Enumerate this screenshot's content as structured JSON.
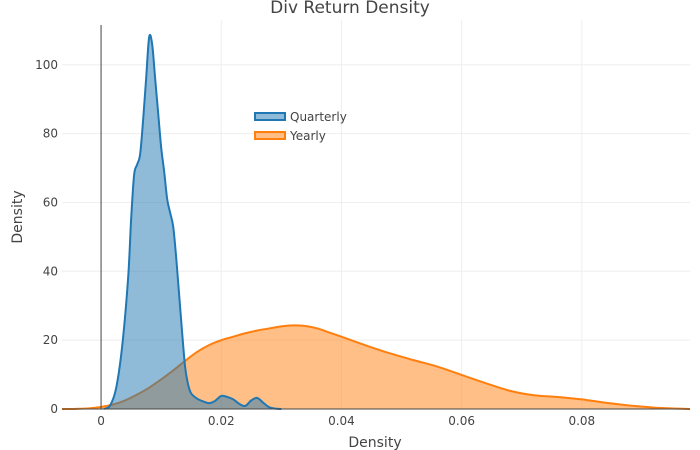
{
  "chart_data": {
    "type": "area",
    "title": "Div Return Density",
    "xlabel": "Density",
    "ylabel": "Density",
    "xlim": [
      -0.0065,
      0.098
    ],
    "ylim": [
      0,
      113
    ],
    "x_ticks": [
      0,
      0.02,
      0.04,
      0.06,
      0.08
    ],
    "x_tick_labels": [
      "0",
      "0.02",
      "0.04",
      "0.06",
      "0.08"
    ],
    "y_ticks": [
      0,
      20,
      40,
      60,
      80,
      100
    ],
    "y_tick_labels": [
      "0",
      "20",
      "40",
      "60",
      "80",
      "100"
    ],
    "grid": true,
    "legend_position": "top-center",
    "series": [
      {
        "name": "Quarterly",
        "color": "#1f77b4",
        "fill": "rgba(31,119,180,0.5)",
        "x": [
          0.0005,
          0.0015,
          0.0025,
          0.0035,
          0.0045,
          0.005,
          0.0055,
          0.006,
          0.0065,
          0.007,
          0.0075,
          0.008,
          0.0085,
          0.009,
          0.0095,
          0.01,
          0.0105,
          0.011,
          0.0115,
          0.012,
          0.0125,
          0.013,
          0.0135,
          0.014,
          0.0145,
          0.015,
          0.016,
          0.017,
          0.018,
          0.019,
          0.02,
          0.021,
          0.022,
          0.023,
          0.024,
          0.025,
          0.026,
          0.027,
          0.028,
          0.029,
          0.03
        ],
        "y": [
          0,
          1,
          6,
          18,
          38,
          55,
          68,
          71,
          74,
          84,
          96,
          108,
          106,
          96,
          86,
          76,
          69,
          61,
          57,
          53,
          44,
          33,
          22,
          12,
          7,
          4.5,
          3,
          2.2,
          1.7,
          2.4,
          3.8,
          3.5,
          2.8,
          1.5,
          0.9,
          2.5,
          3.2,
          1.8,
          0.5,
          0.1,
          0
        ]
      },
      {
        "name": "Yearly",
        "color": "#ff7f0e",
        "fill": "rgba(255,127,14,0.5)",
        "x": [
          -0.0065,
          -0.004,
          -0.002,
          0,
          0.002,
          0.004,
          0.006,
          0.008,
          0.01,
          0.012,
          0.014,
          0.016,
          0.018,
          0.02,
          0.022,
          0.024,
          0.026,
          0.028,
          0.03,
          0.032,
          0.034,
          0.036,
          0.038,
          0.04,
          0.044,
          0.048,
          0.052,
          0.056,
          0.06,
          0.064,
          0.068,
          0.072,
          0.076,
          0.08,
          0.084,
          0.088,
          0.092,
          0.096,
          0.098
        ],
        "y": [
          0,
          0.05,
          0.2,
          0.6,
          1.3,
          2.5,
          4.2,
          6.2,
          8.6,
          11.2,
          14,
          16.6,
          18.6,
          20,
          21,
          22,
          22.8,
          23.4,
          24,
          24.3,
          24.1,
          23.4,
          22.2,
          21,
          18.5,
          16.2,
          14.2,
          12.3,
          9.9,
          7.5,
          5.3,
          4,
          3.5,
          2.8,
          1.8,
          1,
          0.4,
          0.1,
          0
        ]
      }
    ]
  }
}
